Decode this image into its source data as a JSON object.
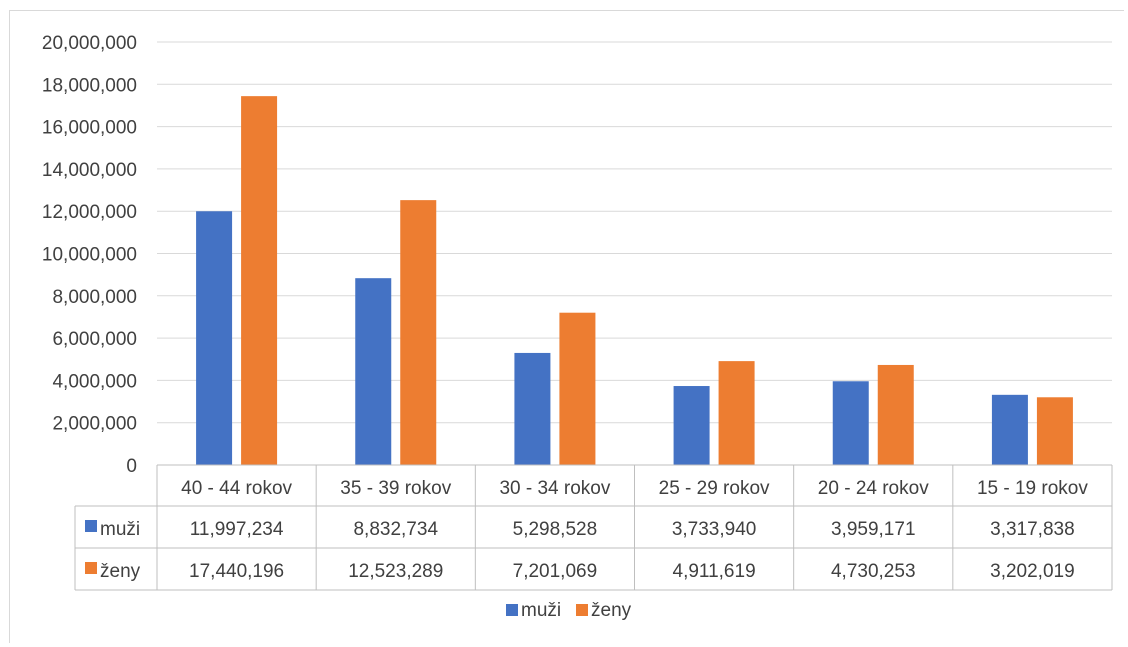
{
  "chart_data": {
    "type": "bar",
    "categories": [
      "40 - 44 rokov",
      "35 - 39 rokov",
      "30 - 34 rokov",
      "25 - 29 rokov",
      "20 - 24 rokov",
      "15 - 19 rokov"
    ],
    "series": [
      {
        "name": "muži",
        "color": "#4472c4",
        "values": [
          11997234,
          8832734,
          5298528,
          3733940,
          3959171,
          3317838
        ]
      },
      {
        "name": "ženy",
        "color": "#ed7d31",
        "values": [
          17440196,
          12523289,
          7201069,
          4911619,
          4730253,
          3202019
        ]
      }
    ],
    "table_values": [
      [
        "11,997,234",
        "8,832,734",
        "5,298,528",
        "3,733,940",
        "3,959,171",
        "3,317,838"
      ],
      [
        "17,440,196",
        "12,523,289",
        "7,201,069",
        "4,911,619",
        "4,730,253",
        "3,202,019"
      ]
    ],
    "y_ticks": [
      "0",
      "2,000,000",
      "4,000,000",
      "6,000,000",
      "8,000,000",
      "10,000,000",
      "12,000,000",
      "14,000,000",
      "16,000,000",
      "18,000,000",
      "20,000,000"
    ],
    "ylim": [
      0,
      20000000
    ],
    "title": "",
    "xlabel": "",
    "ylabel": "",
    "grid": true,
    "legend_position": "bottom",
    "data_table": true
  }
}
